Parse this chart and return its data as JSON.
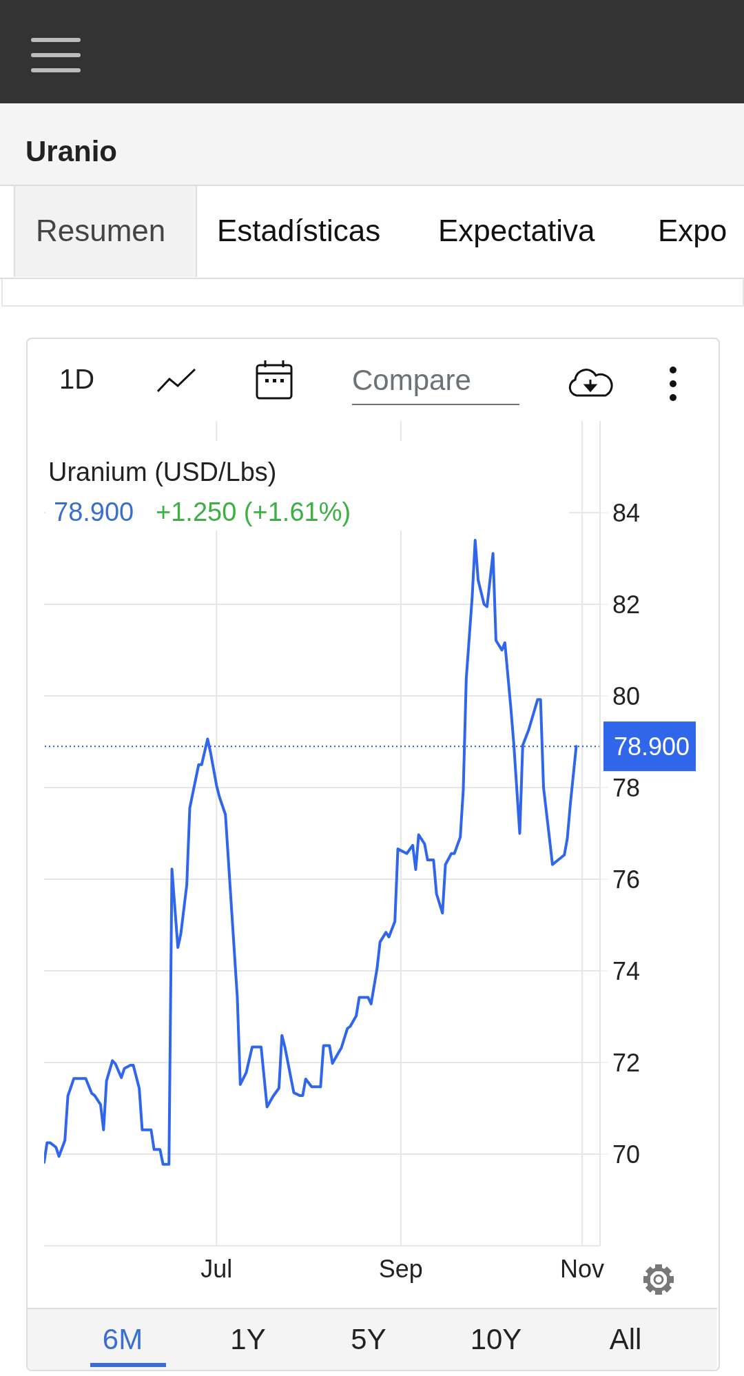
{
  "chart_data": {
    "type": "line",
    "title": "Uranio",
    "subtitle": "Uranium (USD/Lbs)",
    "annotations": [
      "Resumen",
      "Estadísticas",
      "Expectativa",
      "Expo",
      "1D",
      "Compare",
      "78.900",
      "+1.250 (+1.61%)",
      "6M",
      "1Y",
      "5Y",
      "10Y",
      "All"
    ],
    "x": [
      "--05-04",
      "--05-05",
      "--05-06",
      "--05-08",
      "--05-09",
      "--05-11",
      "--05-12",
      "--05-14",
      "--05-18",
      "--05-20",
      "--05-21",
      "--05-23",
      "--05-24",
      "--05-25",
      "--05-27",
      "--05-28",
      "--05-30",
      "--05-31",
      "--06-02",
      "--06-03",
      "--06-05",
      "--06-06",
      "--06-09",
      "--06-10",
      "--06-12",
      "--06-13",
      "--06-15",
      "--06-16",
      "--06-18",
      "--06-19",
      "--06-21",
      "--06-22",
      "--06-23",
      "--06-25",
      "--06-26",
      "--06-28",
      "--06-29",
      "--07-01",
      "--07-02",
      "--07-04",
      "--07-08",
      "--07-09",
      "--07-11",
      "--07-13",
      "--07-16",
      "--07-18",
      "--07-20",
      "--07-22",
      "--07-23",
      "--07-24",
      "--07-26",
      "--07-27",
      "--07-29",
      "--07-30",
      "--07-31",
      "--08-02",
      "--08-05",
      "--08-06",
      "--08-08",
      "--08-09",
      "--08-11",
      "--08-12",
      "--08-14",
      "--08-15",
      "--08-17",
      "--08-18",
      "--08-21",
      "--08-22",
      "--08-24",
      "--08-25",
      "--08-27",
      "--08-28",
      "--08-30",
      "--08-31",
      "--09-03",
      "--09-05",
      "--09-06",
      "--09-07",
      "--09-09",
      "--09-10",
      "--09-12",
      "--09-13",
      "--09-15",
      "--09-16",
      "--09-18",
      "--09-19",
      "--09-21",
      "--09-22",
      "--09-23",
      "--09-25",
      "--09-26",
      "--09-27",
      "--09-29",
      "--09-30",
      "--10-02",
      "--10-03",
      "--10-05",
      "--10-06",
      "--10-08",
      "--10-09",
      "--10-11",
      "--10-12",
      "--10-14",
      "--10-17",
      "--10-18",
      "--10-19",
      "--10-21",
      "--10-22",
      "--10-26",
      "--10-27",
      "--10-28",
      "--10-30"
    ],
    "series": [
      {
        "color": "#2f66ea",
        "values": [
          69.82,
          70.25,
          70.25,
          70.15,
          69.95,
          70.3,
          71.27,
          71.65,
          71.65,
          71.33,
          71.28,
          71.08,
          70.53,
          71.6,
          72.04,
          71.97,
          71.67,
          71.87,
          71.94,
          71.94,
          71.44,
          70.53,
          70.53,
          70.1,
          70.1,
          69.78,
          69.78,
          76.22,
          74.51,
          74.81,
          75.88,
          77.55,
          77.87,
          78.5,
          78.5,
          79.06,
          78.76,
          78.05,
          77.79,
          77.41,
          73.41,
          71.52,
          71.78,
          72.34,
          72.34,
          71.03,
          71.26,
          71.44,
          72.59,
          72.34,
          71.67,
          71.34,
          71.28,
          71.28,
          71.64,
          71.47,
          71.47,
          72.37,
          72.37,
          71.98,
          72.21,
          72.32,
          72.74,
          72.79,
          73.02,
          73.42,
          73.42,
          73.28,
          74.05,
          74.63,
          74.84,
          74.74,
          75.08,
          76.66,
          76.56,
          76.74,
          76.21,
          76.97,
          76.77,
          76.42,
          76.42,
          75.68,
          75.26,
          76.32,
          76.56,
          76.56,
          76.92,
          77.95,
          80.37,
          82.16,
          83.4,
          82.53,
          82,
          81.95,
          83.11,
          81.21,
          81,
          81.16,
          79.74,
          78.95,
          77,
          78.92,
          79.26,
          79.92,
          79.92,
          78,
          76.89,
          76.32,
          76.53,
          76.89,
          77.63,
          78.9
        ]
      }
    ],
    "xlim": [
      "--05-04",
      "--11-07"
    ],
    "xticks": [
      {
        "value": "--07-01",
        "label": "Jul"
      },
      {
        "value": "--09-01",
        "label": "Sep"
      },
      {
        "value": "--11-01",
        "label": "Nov"
      }
    ],
    "ylim": [
      68,
      86
    ],
    "yticks": [
      70,
      72,
      74,
      76,
      78,
      80,
      82,
      84
    ],
    "ref_lines": [
      {
        "axis": "y",
        "value": 78.9,
        "label": "78.900",
        "color": "#2a5db0",
        "line_style": "dotted"
      }
    ],
    "grid": true,
    "marker": "none",
    "line_style": "solid"
  }
}
